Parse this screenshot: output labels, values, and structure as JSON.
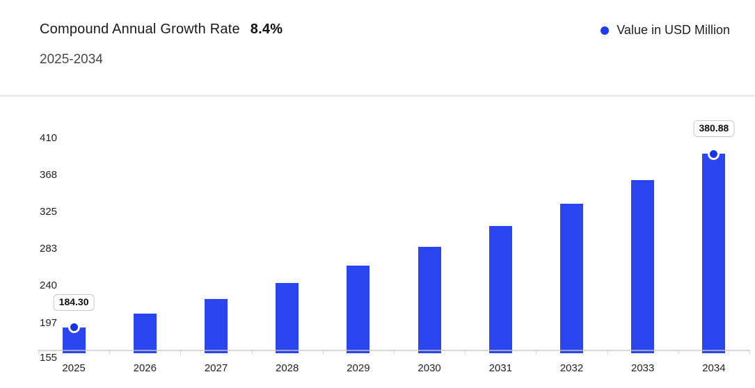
{
  "header": {
    "title": "Compound Annual Growth Rate",
    "cagr_value": "8.4%",
    "subtitle": "2025-2034",
    "legend_label": "Value in USD Million"
  },
  "chart_data": {
    "type": "bar",
    "title": "Compound Annual Growth Rate 8.4%",
    "subtitle": "2025-2034",
    "legend": [
      "Value in USD Million"
    ],
    "legend_position": "top-right",
    "categories": [
      "2025",
      "2026",
      "2027",
      "2028",
      "2029",
      "2030",
      "2031",
      "2032",
      "2033",
      "2034"
    ],
    "series": [
      {
        "name": "Value in USD Million",
        "values": [
          184.3,
          199.78,
          216.56,
          234.75,
          254.47,
          275.85,
          299.02,
          324.14,
          351.37,
          380.88
        ]
      }
    ],
    "highlighted": [
      {
        "index": 0,
        "label": "184.30"
      },
      {
        "index": 9,
        "label": "380.88"
      }
    ],
    "y_ticks": [
      410,
      368,
      325,
      283,
      240,
      197,
      155
    ],
    "ylim": [
      155,
      410
    ],
    "grid": "off",
    "colors": {
      "bar": "#2b46f1",
      "marker": "#1733e8",
      "legend_dot": "#1e3af2"
    }
  }
}
